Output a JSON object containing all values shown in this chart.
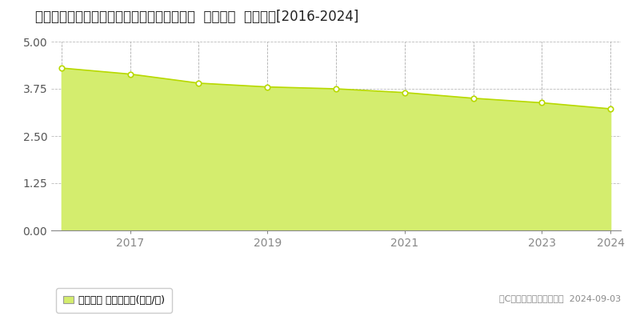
{
  "title": "愛知県知多郡南知多町大字山海字小山８９番  地価公示  地価推移[2016-2024]",
  "years": [
    2016,
    2017,
    2018,
    2019,
    2020,
    2021,
    2022,
    2023,
    2024
  ],
  "values": [
    4.3,
    4.14,
    3.9,
    3.8,
    3.75,
    3.65,
    3.5,
    3.38,
    3.22
  ],
  "ylim": [
    0,
    5
  ],
  "yticks": [
    0,
    1.25,
    2.5,
    3.75,
    5
  ],
  "fill_color": "#d4ed6e",
  "line_color": "#b8d900",
  "marker_facecolor": "#ffffff",
  "marker_edgecolor": "#b8d900",
  "vgrid_color": "#999999",
  "hgrid_color": "#aaaaaa",
  "bg_color": "#ffffff",
  "plot_bg_color": "#ffffff",
  "legend_label": "地価公示 平均坪単価(万円/坪)",
  "copyright_text": "（C）土地価格ドットコム  2024-09-03",
  "title_fontsize": 12,
  "legend_fontsize": 9,
  "copyright_fontsize": 8,
  "tick_fontsize": 10,
  "xtick_years": [
    2017,
    2019,
    2021,
    2023,
    2024
  ]
}
